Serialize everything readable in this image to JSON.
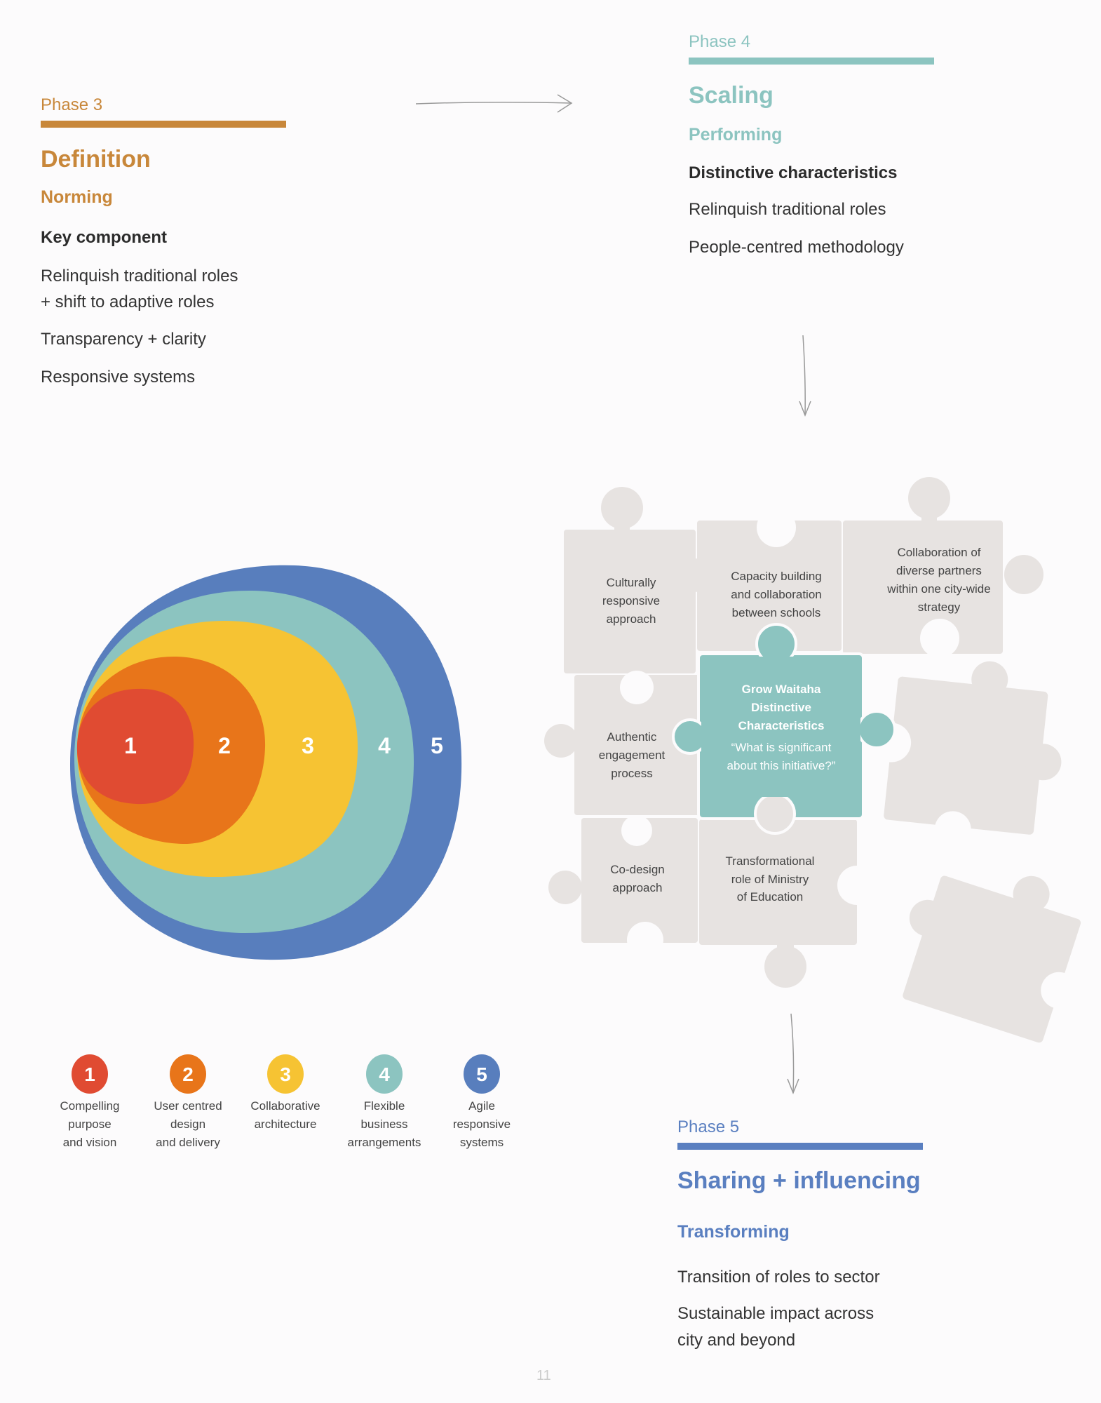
{
  "colors": {
    "phase3": "#c8873a",
    "phase4": "#8cc4c0",
    "phase5": "#5a7fc0",
    "ring1": "#e04b32",
    "ring2": "#e8751a",
    "ring3": "#f6c333",
    "ring4": "#8cc4c0",
    "ring5": "#587ebd",
    "puzzle": "#e7e3e1"
  },
  "phase3": {
    "label": "Phase 3",
    "title": "Definition",
    "subtitle": "Norming",
    "heading": "Key component",
    "items": [
      "Relinquish traditional roles",
      "+ shift to adaptive roles",
      "Transparency + clarity",
      "Responsive systems"
    ]
  },
  "phase4": {
    "label": "Phase 4",
    "title": "Scaling",
    "subtitle": "Performing",
    "heading": "Distinctive characteristics",
    "items": [
      "Relinquish traditional roles",
      "People-centred methodology"
    ]
  },
  "phase5": {
    "label": "Phase 5",
    "title": "Sharing + influencing",
    "subtitle": "Transforming",
    "items": [
      "Transition of roles to sector",
      "Sustainable impact across",
      "city and beyond"
    ]
  },
  "onion": {
    "numbers": [
      "1",
      "2",
      "3",
      "4",
      "5"
    ]
  },
  "legend": [
    {
      "number": "1",
      "lines": [
        "Compelling",
        "purpose",
        "and vision"
      ]
    },
    {
      "number": "2",
      "lines": [
        "User centred",
        "design",
        "and delivery"
      ]
    },
    {
      "number": "3",
      "lines": [
        "Collaborative",
        "architecture"
      ]
    },
    {
      "number": "4",
      "lines": [
        "Flexible",
        "business",
        "arrangements"
      ]
    },
    {
      "number": "5",
      "lines": [
        "Agile",
        "responsive",
        "systems"
      ]
    }
  ],
  "puzzle": {
    "culturally": [
      "Culturally",
      "responsive",
      "approach"
    ],
    "capacity": [
      "Capacity building",
      "and collaboration",
      "between schools"
    ],
    "collaboration": [
      "Collaboration of",
      "diverse partners",
      "within one city-wide",
      "strategy"
    ],
    "center_title": [
      "Grow Waitaha",
      "Distinctive",
      "Characteristics"
    ],
    "center_quote": [
      "“What is significant",
      "about this initiative?”"
    ],
    "authentic": [
      "Authentic",
      "engagement",
      "process"
    ],
    "codesign": [
      "Co-design",
      "approach"
    ],
    "transformational": [
      "Transformational",
      "role of Ministry",
      "of Education"
    ]
  },
  "page_number": "11"
}
